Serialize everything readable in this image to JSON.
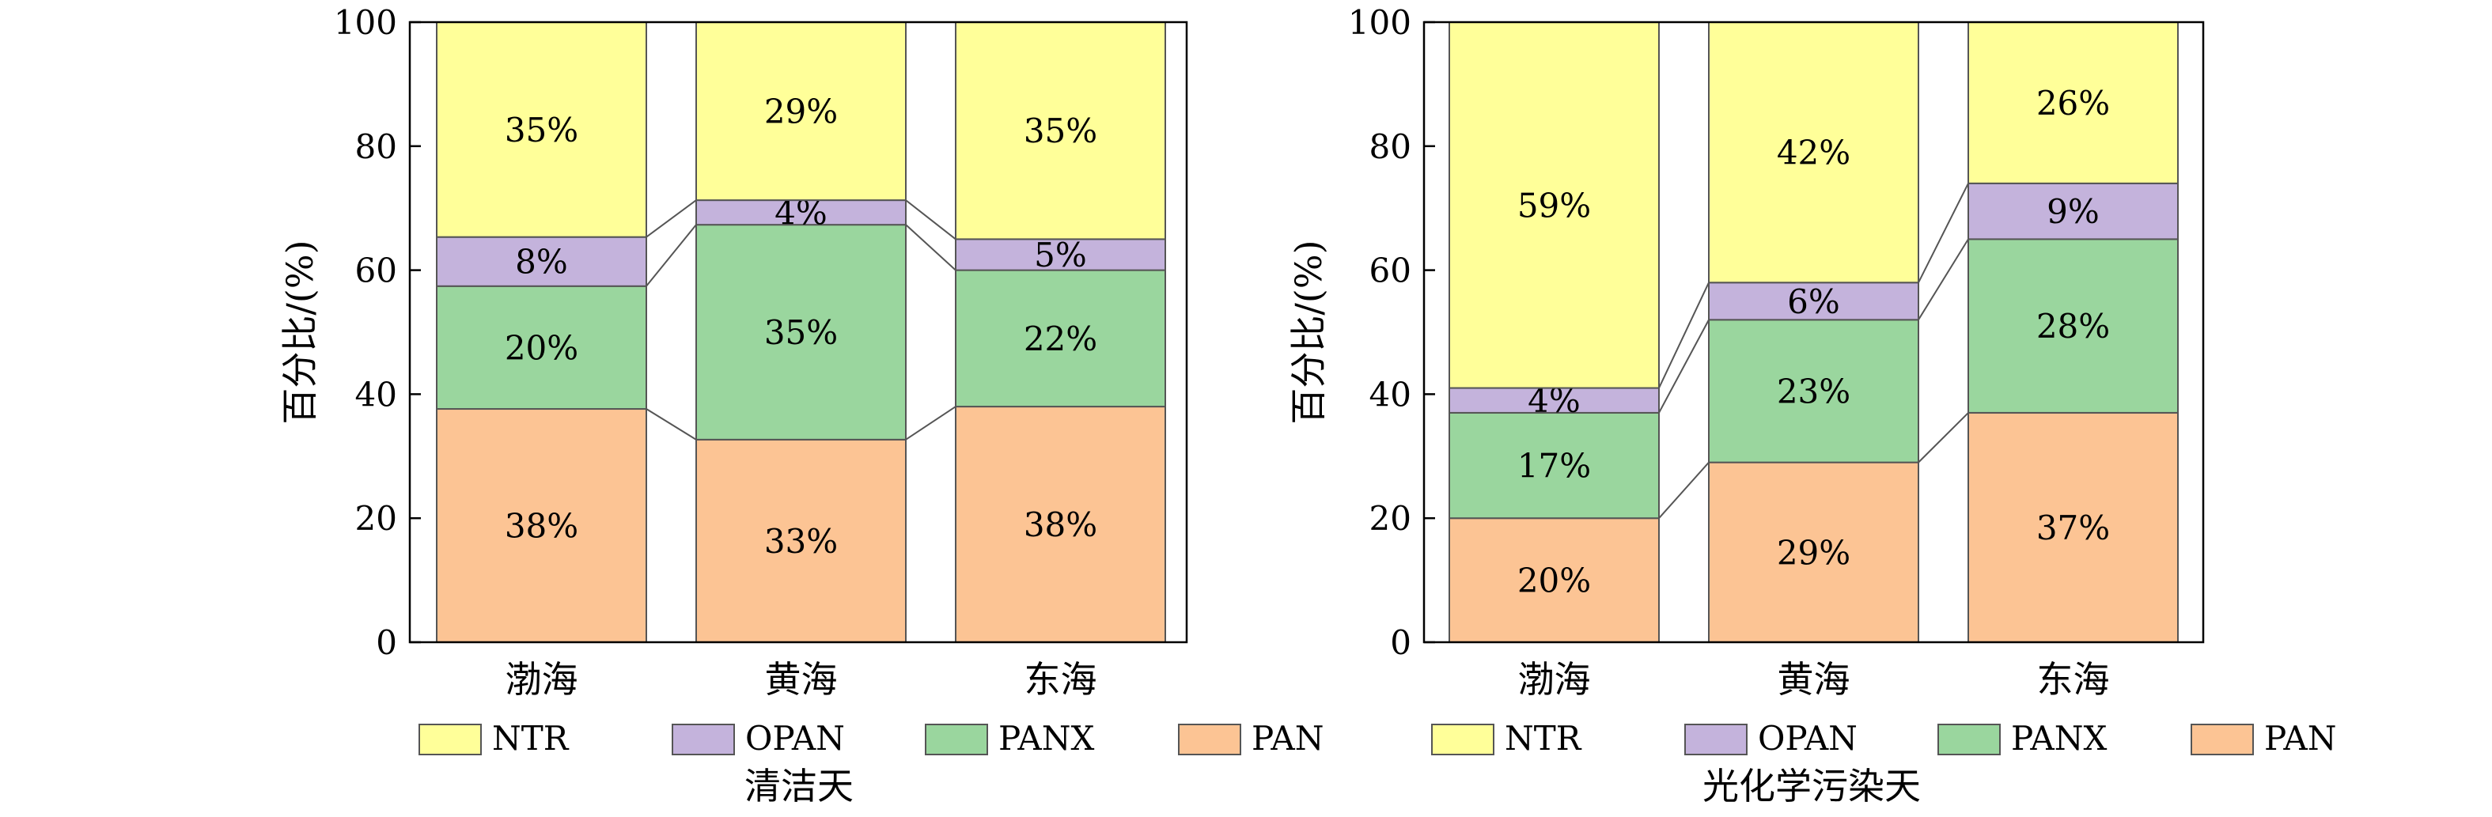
{
  "colors": {
    "NTR": "#ffff99",
    "OPAN": "#c4b3dc",
    "PANX": "#9ad69e",
    "PAN": "#fcc494",
    "outline": "#555555",
    "connector": "#555555"
  },
  "chart_data": [
    {
      "type": "bar",
      "stacked": true,
      "title": "清洁天",
      "ylabel": "百分比/(%)",
      "xlabel": "",
      "ylim": [
        0,
        100
      ],
      "yticks": [
        "0",
        "20",
        "40",
        "60",
        "80",
        "100"
      ],
      "categories": [
        "渤海",
        "黄海",
        "东海"
      ],
      "legend": {
        "position": "bottom",
        "entries": [
          "NTR",
          "OPAN",
          "PANX",
          "PAN"
        ]
      },
      "series": [
        {
          "name": "PAN",
          "values": [
            38,
            33,
            38
          ],
          "labels": [
            "38%",
            "33%",
            "38%"
          ]
        },
        {
          "name": "PANX",
          "values": [
            20,
            35,
            22
          ],
          "labels": [
            "20%",
            "35%",
            "22%"
          ]
        },
        {
          "name": "OPAN",
          "values": [
            8,
            4,
            5
          ],
          "labels": [
            "8%",
            "4%",
            "5%"
          ]
        },
        {
          "name": "NTR",
          "values": [
            35,
            29,
            35
          ],
          "labels": [
            "35%",
            "29%",
            "35%"
          ]
        }
      ]
    },
    {
      "type": "bar",
      "stacked": true,
      "title": "光化学污染天",
      "ylabel": "百分比/(%)",
      "xlabel": "",
      "ylim": [
        0,
        100
      ],
      "yticks": [
        "0",
        "20",
        "40",
        "60",
        "80",
        "100"
      ],
      "categories": [
        "渤海",
        "黄海",
        "东海"
      ],
      "legend": {
        "position": "bottom",
        "entries": [
          "NTR",
          "OPAN",
          "PANX",
          "PAN"
        ]
      },
      "series": [
        {
          "name": "PAN",
          "values": [
            20,
            29,
            37
          ],
          "labels": [
            "20%",
            "29%",
            "37%"
          ]
        },
        {
          "name": "PANX",
          "values": [
            17,
            23,
            28
          ],
          "labels": [
            "17%",
            "23%",
            "28%"
          ]
        },
        {
          "name": "OPAN",
          "values": [
            4,
            6,
            9
          ],
          "labels": [
            "4%",
            "6%",
            "9%"
          ]
        },
        {
          "name": "NTR",
          "values": [
            59,
            42,
            26
          ],
          "labels": [
            "59%",
            "42%",
            "26%"
          ]
        }
      ]
    }
  ]
}
